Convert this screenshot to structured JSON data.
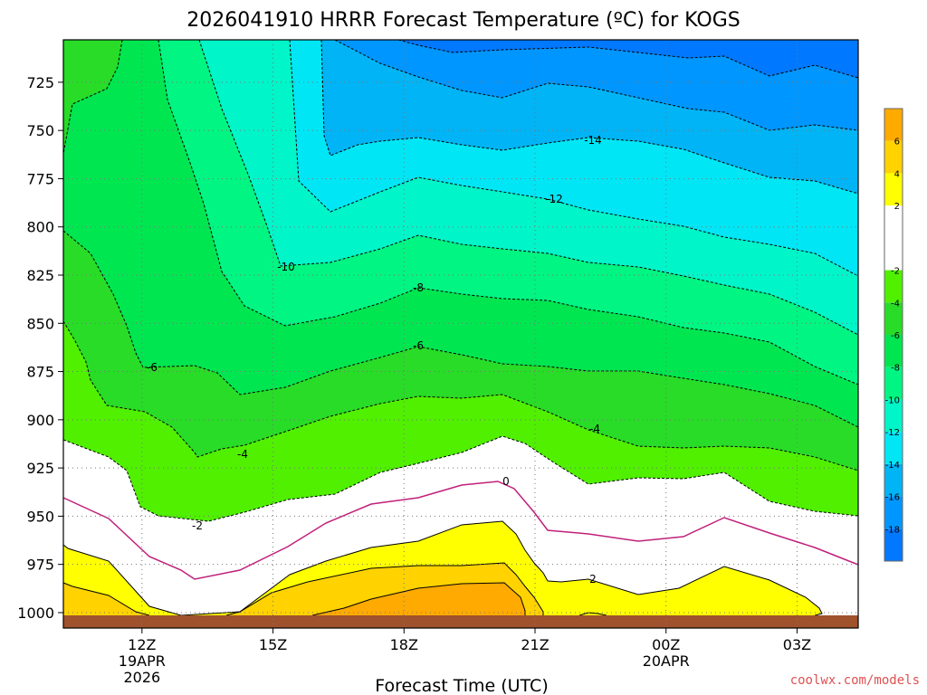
{
  "chart_data": {
    "type": "contour",
    "title": "2026041910 HRRR Forecast Temperature (ºC) for KOGS",
    "xlabel": "Forecast Time (UTC)",
    "ylabel": "",
    "x_axis": {
      "range_hours_utc": [
        10.2,
        28.4
      ],
      "ticks": [
        {
          "hour": 12,
          "label": "12Z",
          "sub1": "19APR",
          "sub2": "2026"
        },
        {
          "hour": 15,
          "label": "15Z",
          "sub1": "",
          "sub2": ""
        },
        {
          "hour": 18,
          "label": "18Z",
          "sub1": "",
          "sub2": ""
        },
        {
          "hour": 21,
          "label": "21Z",
          "sub1": "",
          "sub2": ""
        },
        {
          "hour": 24,
          "label": "00Z",
          "sub1": "20APR",
          "sub2": ""
        },
        {
          "hour": 27,
          "label": "03Z",
          "sub1": "",
          "sub2": ""
        }
      ]
    },
    "y_axis": {
      "units": "hPa",
      "range": [
        1008,
        703
      ],
      "ticks": [
        "725",
        "750",
        "775",
        "800",
        "825",
        "850",
        "875",
        "900",
        "925",
        "950",
        "975",
        "1000"
      ]
    },
    "grid": "dotted",
    "contour_levels_labeled": [
      "-14",
      "-12",
      "-10",
      "-8",
      "-6",
      "-6",
      "-4",
      "-4",
      "-2",
      "0",
      "2"
    ],
    "colorbar": {
      "placement": "right",
      "ticks": [
        "6",
        "4",
        "2",
        "-2",
        "-4",
        "-6",
        "-8",
        "-10",
        "-12",
        "-14",
        "-16",
        "-18"
      ],
      "bands": [
        {
          "lo": 6,
          "hi": 8,
          "color": "#ffaa00"
        },
        {
          "lo": 4,
          "hi": 6,
          "color": "#ffd200"
        },
        {
          "lo": 2,
          "hi": 4,
          "color": "#ffff00"
        },
        {
          "lo": -2,
          "hi": 2,
          "color": "#ffffff"
        },
        {
          "lo": -4,
          "hi": -2,
          "color": "#50f000"
        },
        {
          "lo": -6,
          "hi": -4,
          "color": "#28dc28"
        },
        {
          "lo": -8,
          "hi": -6,
          "color": "#00e650"
        },
        {
          "lo": -10,
          "hi": -8,
          "color": "#00f582"
        },
        {
          "lo": -12,
          "hi": -10,
          "color": "#00f5c8"
        },
        {
          "lo": -14,
          "hi": -12,
          "color": "#00e6f5"
        },
        {
          "lo": -16,
          "hi": -14,
          "color": "#00b4f5"
        },
        {
          "lo": -18,
          "hi": -16,
          "color": "#0096ff"
        },
        {
          "lo": -20,
          "hi": -18,
          "color": "#0078ff"
        }
      ]
    },
    "ground_color": "#a0522d",
    "line_colors": {
      "freezing": "#c0207a",
      "positive": "#000000",
      "negative": "#000000"
    }
  },
  "credit": "coolwx.com/models"
}
